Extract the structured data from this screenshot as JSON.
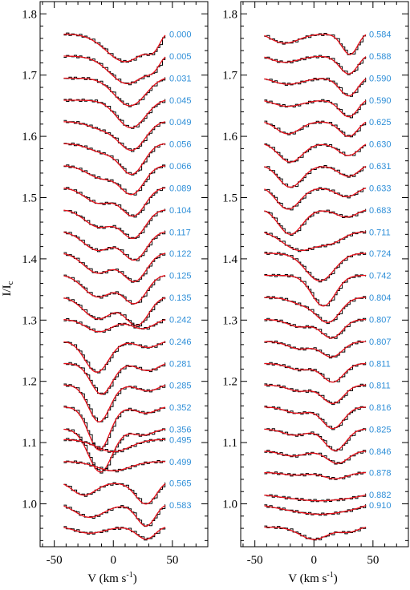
{
  "chart_data": [
    {
      "type": "line",
      "panel": "left",
      "xlabel": "V (km s⁻¹)",
      "ylabel": "I/I_c",
      "ylim": [
        0.93,
        1.82
      ],
      "xlim": [
        -62,
        80
      ],
      "x_tick_labels": [
        "-50",
        "0",
        "50"
      ],
      "y_tick_labels": [
        "1.0",
        "1.1",
        "1.2",
        "1.3",
        "1.4",
        "1.5",
        "1.6",
        "1.7",
        "1.8"
      ],
      "series_legend": {
        "observed": "black histogram",
        "model": "red line"
      },
      "colors": {
        "observed": "#000000",
        "model": "#e8101a",
        "phase_label": "#2f8fd8"
      },
      "profiles": [
        {
          "phase": "0.000",
          "offset": 1.767,
          "dips": [
            [
              10,
              16,
              0.045
            ],
            [
              35,
              6,
              0.02
            ]
          ]
        },
        {
          "phase": "0.005",
          "offset": 1.731,
          "dips": [
            [
              12,
              15,
              0.045
            ],
            [
              35,
              6,
              0.015
            ]
          ]
        },
        {
          "phase": "0.031",
          "offset": 1.695,
          "dips": [
            [
              14,
              13,
              0.045
            ]
          ]
        },
        {
          "phase": "0.045",
          "offset": 1.659,
          "dips": [
            [
              15,
              12,
              0.045
            ]
          ]
        },
        {
          "phase": "0.049",
          "offset": 1.624,
          "dips": [
            [
              16,
              11,
              0.045
            ],
            [
              -8,
              12,
              0.012
            ]
          ]
        },
        {
          "phase": "0.056",
          "offset": 1.588,
          "dips": [
            [
              16,
              10,
              0.048
            ],
            [
              -8,
              12,
              0.014
            ]
          ]
        },
        {
          "phase": "0.066",
          "offset": 1.552,
          "dips": [
            [
              16,
              10,
              0.045
            ],
            [
              -10,
              12,
              0.02
            ]
          ]
        },
        {
          "phase": "0.089",
          "offset": 1.516,
          "dips": [
            [
              17,
              10,
              0.045
            ],
            [
              -12,
              12,
              0.025
            ]
          ]
        },
        {
          "phase": "0.104",
          "offset": 1.48,
          "dips": [
            [
              17,
              10,
              0.045
            ],
            [
              -12,
              12,
              0.028
            ]
          ]
        },
        {
          "phase": "0.117",
          "offset": 1.444,
          "dips": [
            [
              18,
              10,
              0.045
            ],
            [
              -13,
              12,
              0.03
            ]
          ]
        },
        {
          "phase": "0.122",
          "offset": 1.409,
          "dips": [
            [
              18,
              10,
              0.045
            ],
            [
              -13,
              12,
              0.032
            ]
          ]
        },
        {
          "phase": "0.125",
          "offset": 1.373,
          "dips": [
            [
              18,
              10,
              0.045
            ],
            [
              -13,
              12,
              0.035
            ]
          ]
        },
        {
          "phase": "0.135",
          "offset": 1.337,
          "dips": [
            [
              20,
              10,
              0.045
            ],
            [
              -13,
              12,
              0.035
            ]
          ]
        },
        {
          "phase": "0.242",
          "offset": 1.301,
          "dips": [
            [
              -12,
              11,
              0.02
            ],
            [
              25,
              10,
              0.015
            ]
          ]
        },
        {
          "phase": "0.246",
          "offset": 1.265,
          "dips": [
            [
              -14,
              10,
              0.05
            ],
            [
              30,
              9,
              0.01
            ]
          ]
        },
        {
          "phase": "0.281",
          "offset": 1.229,
          "dips": [
            [
              -10,
              9,
              0.05
            ],
            [
              30,
              9,
              0.012
            ]
          ]
        },
        {
          "phase": "0.285",
          "offset": 1.194,
          "dips": [
            [
              -12,
              9,
              0.06
            ],
            [
              30,
              9,
              0.01
            ]
          ]
        },
        {
          "phase": "0.352",
          "offset": 1.158,
          "dips": [
            [
              -12,
              9,
              0.07
            ],
            [
              28,
              9,
              0.01
            ]
          ]
        },
        {
          "phase": "0.356",
          "offset": 1.122,
          "dips": [
            [
              -11,
              10,
              0.07
            ],
            [
              25,
              9,
              0.01
            ]
          ]
        },
        {
          "phase": "0.495",
          "offset": 1.105,
          "dips": [
            [
              0,
              14,
              0.02
            ]
          ]
        },
        {
          "phase": "0.499",
          "offset": 1.069,
          "dips": [
            [
              0,
              14,
              0.015
            ]
          ]
        },
        {
          "phase": "0.565",
          "offset": 1.034,
          "dips": [
            [
              -25,
              10,
              0.02
            ],
            [
              28,
              9,
              0.035
            ]
          ]
        },
        {
          "phase": "0.583",
          "offset": 0.998,
          "dips": [
            [
              -20,
              12,
              0.02
            ],
            [
              28,
              8,
              0.035
            ]
          ]
        },
        {
          "phase": "",
          "offset": 0.962,
          "dips": [
            [
              -20,
              12,
              0.01
            ],
            [
              28,
              8,
              0.02
            ]
          ]
        }
      ]
    },
    {
      "type": "line",
      "panel": "right",
      "xlabel": "V (km s⁻¹)",
      "ylabel": "",
      "ylim": [
        0.93,
        1.82
      ],
      "xlim": [
        -62,
        80
      ],
      "x_tick_labels": [
        "-50",
        "0",
        "50"
      ],
      "y_tick_labels": [
        "1.0",
        "1.1",
        "1.2",
        "1.3",
        "1.4",
        "1.5",
        "1.6",
        "1.7",
        "1.8"
      ],
      "series_legend": {
        "observed": "black histogram",
        "model": "red line"
      },
      "colors": {
        "observed": "#000000",
        "model": "#e8101a",
        "phase_label": "#2f8fd8"
      },
      "profiles": [
        {
          "phase": "0.584",
          "offset": 1.767,
          "dips": [
            [
              -25,
              12,
              0.015
            ],
            [
              31,
              7,
              0.035
            ]
          ]
        },
        {
          "phase": "0.588",
          "offset": 1.731,
          "dips": [
            [
              -25,
              12,
              0.01
            ],
            [
              30,
              8,
              0.03
            ]
          ]
        },
        {
          "phase": "0.590",
          "offset": 1.695,
          "dips": [
            [
              -22,
              12,
              0.01
            ],
            [
              30,
              8,
              0.03
            ]
          ]
        },
        {
          "phase": "0.590",
          "offset": 1.659,
          "dips": [
            [
              -22,
              12,
              0.01
            ],
            [
              30,
              8,
              0.028
            ]
          ]
        },
        {
          "phase": "0.625",
          "offset": 1.624,
          "dips": [
            [
              -22,
              10,
              0.02
            ],
            [
              30,
              8,
              0.025
            ]
          ]
        },
        {
          "phase": "0.630",
          "offset": 1.588,
          "dips": [
            [
              -20,
              10,
              0.03
            ],
            [
              30,
              9,
              0.02
            ]
          ]
        },
        {
          "phase": "0.631",
          "offset": 1.552,
          "dips": [
            [
              -20,
              10,
              0.035
            ],
            [
              30,
              9,
              0.018
            ]
          ]
        },
        {
          "phase": "0.633",
          "offset": 1.516,
          "dips": [
            [
              -22,
              10,
              0.035
            ],
            [
              28,
              9,
              0.015
            ]
          ]
        },
        {
          "phase": "0.683",
          "offset": 1.48,
          "dips": [
            [
              -20,
              10,
              0.04
            ],
            [
              28,
              9,
              0.012
            ]
          ]
        },
        {
          "phase": "0.711",
          "offset": 1.444,
          "dips": [
            [
              -12,
              14,
              0.03
            ],
            [
              15,
              10,
              0.015
            ]
          ]
        },
        {
          "phase": "0.724",
          "offset": 1.409,
          "dips": [
            [
              5,
              12,
              0.045
            ]
          ]
        },
        {
          "phase": "0.742",
          "offset": 1.373,
          "dips": [
            [
              8,
              10,
              0.05
            ]
          ]
        },
        {
          "phase": "0.804",
          "offset": 1.337,
          "dips": [
            [
              12,
              10,
              0.04
            ],
            [
              -10,
              10,
              0.01
            ]
          ]
        },
        {
          "phase": "0.807",
          "offset": 1.301,
          "dips": [
            [
              15,
              9,
              0.03
            ],
            [
              -12,
              10,
              0.012
            ]
          ]
        },
        {
          "phase": "0.807",
          "offset": 1.265,
          "dips": [
            [
              15,
              9,
              0.025
            ],
            [
              -12,
              10,
              0.012
            ]
          ]
        },
        {
          "phase": "0.811",
          "offset": 1.229,
          "dips": [
            [
              16,
              9,
              0.03
            ],
            [
              -12,
              10,
              0.01
            ]
          ]
        },
        {
          "phase": "0.811",
          "offset": 1.194,
          "dips": [
            [
              16,
              9,
              0.03
            ],
            [
              -12,
              10,
              0.01
            ]
          ]
        },
        {
          "phase": "0.816",
          "offset": 1.158,
          "dips": [
            [
              16,
              9,
              0.035
            ],
            [
              -14,
              10,
              0.01
            ]
          ]
        },
        {
          "phase": "0.825",
          "offset": 1.122,
          "dips": [
            [
              18,
              9,
              0.035
            ],
            [
              -16,
              10,
              0.01
            ]
          ]
        },
        {
          "phase": "0.846",
          "offset": 1.086,
          "dips": [
            [
              20,
              9,
              0.02
            ],
            [
              -18,
              10,
              0.008
            ]
          ]
        },
        {
          "phase": "0.878",
          "offset": 1.051,
          "dips": [
            [
              18,
              10,
              0.01
            ],
            [
              -16,
              10,
              0.004
            ]
          ]
        },
        {
          "phase": "0.882",
          "offset": 1.015,
          "dips": [
            [
              5,
              25,
              0.01
            ]
          ]
        },
        {
          "phase": "0.910",
          "offset": 0.998,
          "dips": [
            [
              5,
              25,
              0.015
            ]
          ]
        },
        {
          "phase": "",
          "offset": 0.962,
          "dips": [
            [
              0,
              12,
              0.02
            ],
            [
              30,
              8,
              0.008
            ]
          ]
        }
      ]
    }
  ]
}
